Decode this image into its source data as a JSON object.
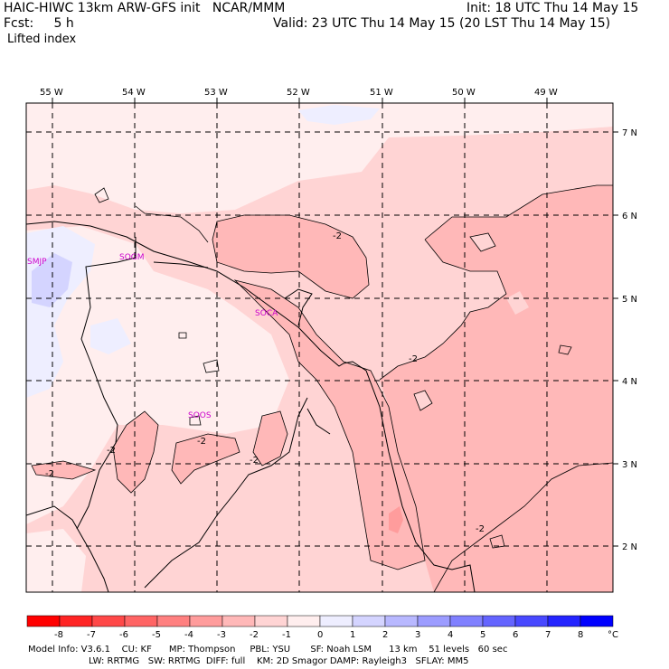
{
  "header": {
    "model_title": "HAIC-HIWC 13km ARW-GFS init   NCAR/MMM",
    "init": "Init: 18 UTC Thu 14 May 15",
    "fcst": "Fcst:     5 h",
    "valid": "Valid: 23 UTC Thu 14 May 15 (20 LST Thu 14 May 15)",
    "field": "Lifted index"
  },
  "map": {
    "lon_labels": [
      "55 W",
      "54 W",
      "53 W",
      "52 W",
      "51 W",
      "50 W",
      "49 W"
    ],
    "lat_labels": [
      "7 N",
      "6 N",
      "5 N",
      "4 N",
      "3 N",
      "2 N"
    ],
    "stations": [
      "SMJP",
      "SOGM",
      "SOCA",
      "SOOS"
    ],
    "contour_labels": [
      "-2",
      "-2",
      "-2",
      "-2",
      "-2",
      "-2",
      "-2"
    ]
  },
  "colorbar": {
    "ticks": [
      "-8",
      "-7",
      "-6",
      "-5",
      "-4",
      "-3",
      "-2",
      "-1",
      "0",
      "1",
      "2",
      "3",
      "4",
      "5",
      "6",
      "7",
      "8"
    ],
    "unit": "°C",
    "colors": [
      "#ff0000",
      "#ff2424",
      "#ff4848",
      "#ff6464",
      "#ff8080",
      "#ff9c9c",
      "#ffb8b8",
      "#ffd4d4",
      "#ffeeee",
      "#eeeeff",
      "#d4d4ff",
      "#b8b8ff",
      "#9c9cff",
      "#8080ff",
      "#6464ff",
      "#4848ff",
      "#2424ff",
      "#0000ff"
    ]
  },
  "footer": {
    "line1": "Model Info: V3.6.1    CU: KF      MP: Thompson     PBL: YSU       SF: Noah LSM      13 km    51 levels   60 sec",
    "line2": "LW: RRTMG   SW: RRTMG  DIFF: full    KM: 2D Smagor DAMP: Rayleigh3   SFLAY: MM5"
  }
}
